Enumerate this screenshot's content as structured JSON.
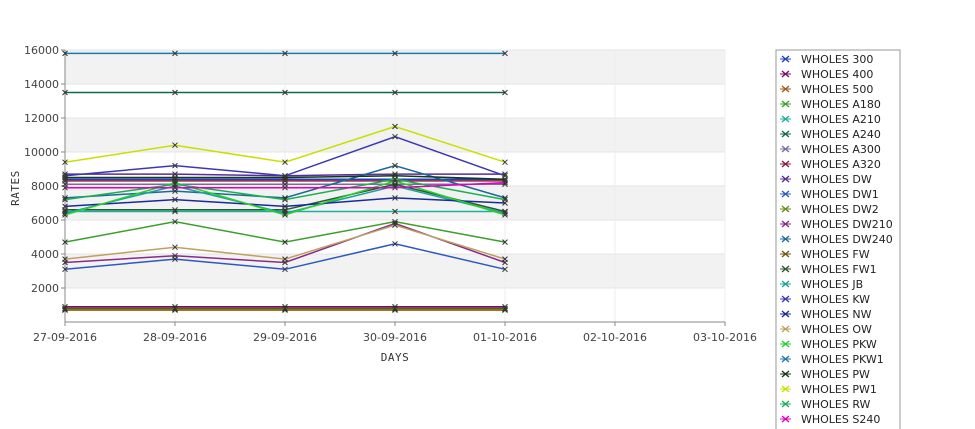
{
  "chart_data": {
    "type": "line",
    "title": "",
    "xlabel": "DAYS",
    "ylabel": "RATES",
    "ylim": [
      0,
      16000
    ],
    "yticks": [
      2000,
      4000,
      6000,
      8000,
      10000,
      12000,
      14000,
      16000
    ],
    "x_ticks": [
      "27-09-2016",
      "28-09-2016",
      "29-09-2016",
      "30-09-2016",
      "01-10-2016",
      "02-10-2016",
      "03-10-2016"
    ],
    "grid": "horizontal bands",
    "legend_position": "right",
    "marker": "x",
    "series": [
      {
        "name": "WHOLES 300",
        "color": "#1f3fbf",
        "values": [
          8400,
          8400,
          8400,
          8400,
          8400
        ]
      },
      {
        "name": "WHOLES 400",
        "color": "#7a0a6e",
        "values": [
          900,
          900,
          900,
          900,
          900
        ]
      },
      {
        "name": "WHOLES 500",
        "color": "#a05a1a",
        "values": [
          700,
          700,
          700,
          700,
          700
        ]
      },
      {
        "name": "WHOLES A180",
        "color": "#3aa02a",
        "values": [
          4700,
          5900,
          4700,
          5900,
          4700
        ]
      },
      {
        "name": "WHOLES A210",
        "color": "#1ab0a0",
        "values": [
          6500,
          6500,
          6500,
          6500,
          6500
        ]
      },
      {
        "name": "WHOLES A240",
        "color": "#0f6a4a",
        "values": [
          13500,
          13500,
          13500,
          13500,
          13500
        ]
      },
      {
        "name": "WHOLES A300",
        "color": "#7a6aa0",
        "values": [
          8100,
          8100,
          8100,
          8100,
          8100
        ]
      },
      {
        "name": "WHOLES A320",
        "color": "#8a1a3a",
        "values": [
          8300,
          8300,
          8300,
          8300,
          8300
        ]
      },
      {
        "name": "WHOLES DW",
        "color": "#5a2aa0",
        "values": [
          8700,
          8700,
          8600,
          8700,
          8700
        ]
      },
      {
        "name": "WHOLES DW1",
        "color": "#2a5ac0",
        "values": [
          3100,
          3700,
          3100,
          4600,
          3100
        ]
      },
      {
        "name": "WHOLES DW2",
        "color": "#6a8a1a",
        "values": [
          750,
          750,
          750,
          750,
          750
        ]
      },
      {
        "name": "WHOLES DW210",
        "color": "#8a2a8a",
        "values": [
          3500,
          3900,
          3500,
          5800,
          3500
        ]
      },
      {
        "name": "WHOLES DW240",
        "color": "#1a6a9a",
        "values": [
          7300,
          7700,
          7300,
          9200,
          7300
        ]
      },
      {
        "name": "WHOLES FW",
        "color": "#6a5a10",
        "values": [
          800,
          800,
          800,
          800,
          800
        ]
      },
      {
        "name": "WHOLES FW1",
        "color": "#2a5a2a",
        "values": [
          6600,
          6600,
          6600,
          8100,
          6500
        ]
      },
      {
        "name": "WHOLES JB",
        "color": "#1aa0a0",
        "values": [
          6400,
          8000,
          6400,
          8000,
          6400
        ]
      },
      {
        "name": "WHOLES KW",
        "color": "#3a3ab0",
        "values": [
          8600,
          9200,
          8600,
          10900,
          8600
        ]
      },
      {
        "name": "WHOLES NW",
        "color": "#1a2a9a",
        "values": [
          6800,
          7200,
          6800,
          7300,
          7000
        ]
      },
      {
        "name": "WHOLES OW",
        "color": "#c0a060",
        "values": [
          3700,
          4400,
          3700,
          5700,
          3700
        ]
      },
      {
        "name": "WHOLES PKW",
        "color": "#2ad02a",
        "values": [
          6300,
          8200,
          6300,
          8300,
          6300
        ]
      },
      {
        "name": "WHOLES PKW1",
        "color": "#1a7ab0",
        "values": [
          15800,
          15800,
          15800,
          15800,
          15800
        ]
      },
      {
        "name": "WHOLES PW",
        "color": "#123a12",
        "values": [
          8500,
          8500,
          8500,
          8600,
          8400
        ]
      },
      {
        "name": "WHOLES PW1",
        "color": "#c8e000",
        "values": [
          9400,
          10400,
          9400,
          11500,
          9400
        ]
      },
      {
        "name": "WHOLES RW",
        "color": "#1ab050",
        "values": [
          7200,
          8100,
          7200,
          8400,
          7200
        ]
      },
      {
        "name": "WHOLES S240",
        "color": "#e000c0",
        "values": [
          7900,
          7900,
          7900,
          7900,
          8200
        ]
      }
    ]
  }
}
